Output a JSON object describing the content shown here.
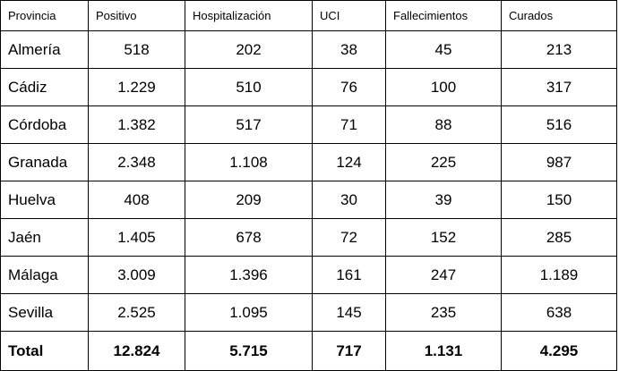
{
  "table": {
    "headers": [
      "Provincia",
      "Positivo",
      "Hospitalización",
      "UCI",
      "Fallecimientos",
      "Curados"
    ],
    "rows": [
      [
        "Almería",
        "518",
        "202",
        "38",
        "45",
        "213"
      ],
      [
        "Cádiz",
        "1.229",
        "510",
        "76",
        "100",
        "317"
      ],
      [
        "Córdoba",
        "1.382",
        "517",
        "71",
        "88",
        "516"
      ],
      [
        "Granada",
        "2.348",
        "1.108",
        "124",
        "225",
        "987"
      ],
      [
        "Huelva",
        "408",
        "209",
        "30",
        "39",
        "150"
      ],
      [
        "Jaén",
        "1.405",
        "678",
        "72",
        "152",
        "285"
      ],
      [
        "Málaga",
        "3.009",
        "1.396",
        "161",
        "247",
        "1.189"
      ],
      [
        "Sevilla",
        "2.525",
        "1.095",
        "145",
        "235",
        "638"
      ]
    ],
    "total": [
      "Total",
      "12.824",
      "5.715",
      "717",
      "1.131",
      "4.295"
    ]
  }
}
